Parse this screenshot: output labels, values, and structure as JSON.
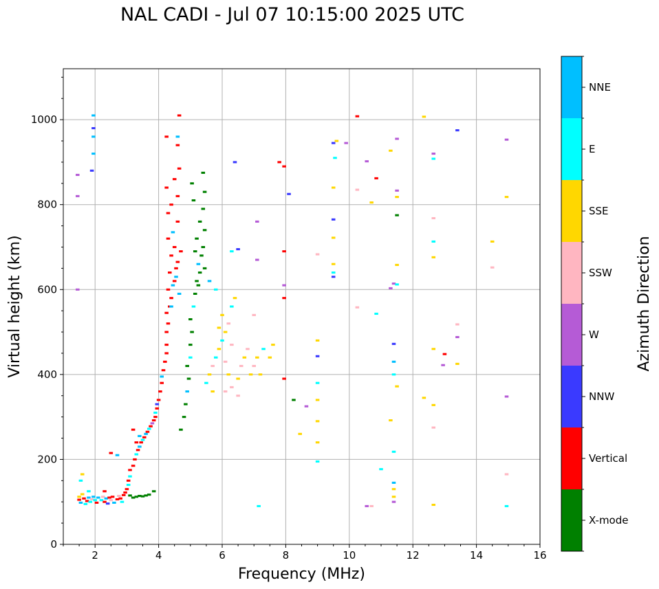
{
  "chart_data": {
    "type": "scatter",
    "title": "NAL CADI - Jul 07 10:15:00 2025 UTC",
    "xlabel": "Frequency (MHz)",
    "ylabel": "Virtual height (km)",
    "xlim": [
      1,
      16
    ],
    "ylim": [
      0,
      1120
    ],
    "xticks": [
      "2",
      "4",
      "6",
      "8",
      "10",
      "12",
      "14",
      "16"
    ],
    "yticks": [
      "0",
      "200",
      "400",
      "600",
      "800",
      "1000"
    ],
    "grid": true,
    "colorbar": {
      "label": "Azimuth Direction",
      "categories": [
        "X-mode",
        "Vertical",
        "NNW",
        "W",
        "SSW",
        "SSE",
        "E",
        "NNE"
      ],
      "colors": [
        "#008000",
        "#ff0000",
        "#3a3aff",
        "#b55bd6",
        "#ffb6c1",
        "#ffd700",
        "#00ffff",
        "#00bfff"
      ]
    },
    "points_format": [
      "frequency_MHz",
      "height_km",
      "category_index"
    ],
    "points": [
      [
        1.5,
        105,
        1
      ],
      [
        1.5,
        112,
        5
      ],
      [
        1.55,
        98,
        7
      ],
      [
        1.6,
        118,
        5
      ],
      [
        1.65,
        108,
        1
      ],
      [
        1.7,
        95,
        6
      ],
      [
        1.75,
        102,
        1
      ],
      [
        1.8,
        110,
        7
      ],
      [
        1.85,
        100,
        6
      ],
      [
        1.9,
        106,
        4
      ],
      [
        1.95,
        112,
        7
      ],
      [
        2.0,
        104,
        6
      ],
      [
        2.05,
        98,
        1
      ],
      [
        2.1,
        110,
        7
      ],
      [
        2.2,
        104,
        6
      ],
      [
        2.25,
        112,
        4
      ],
      [
        2.3,
        100,
        1
      ],
      [
        2.35,
        108,
        7
      ],
      [
        2.4,
        96,
        2
      ],
      [
        2.45,
        110,
        1
      ],
      [
        2.5,
        104,
        4
      ],
      [
        2.55,
        112,
        1
      ],
      [
        2.6,
        98,
        7
      ],
      [
        2.7,
        106,
        1
      ],
      [
        2.75,
        114,
        4
      ],
      [
        2.8,
        108,
        1
      ],
      [
        2.85,
        100,
        6
      ],
      [
        2.9,
        116,
        1
      ],
      [
        2.95,
        122,
        1
      ],
      [
        3.0,
        130,
        1
      ],
      [
        3.05,
        140,
        6
      ],
      [
        3.05,
        150,
        1
      ],
      [
        3.1,
        160,
        6
      ],
      [
        3.1,
        175,
        1
      ],
      [
        1.6,
        165,
        5
      ],
      [
        1.55,
        150,
        6
      ],
      [
        1.8,
        125,
        6
      ],
      [
        2.3,
        125,
        1
      ],
      [
        3.2,
        110,
        0
      ],
      [
        3.3,
        112,
        0
      ],
      [
        3.4,
        114,
        0
      ],
      [
        3.5,
        113,
        0
      ],
      [
        3.6,
        115,
        0
      ],
      [
        3.7,
        117,
        0
      ],
      [
        3.85,
        125,
        0
      ],
      [
        3.1,
        115,
        0
      ],
      [
        3.2,
        185,
        1
      ],
      [
        3.25,
        200,
        1
      ],
      [
        3.3,
        212,
        6
      ],
      [
        3.35,
        222,
        1
      ],
      [
        3.4,
        230,
        7
      ],
      [
        3.45,
        240,
        1
      ],
      [
        3.5,
        246,
        6
      ],
      [
        3.55,
        252,
        1
      ],
      [
        3.6,
        260,
        7
      ],
      [
        3.65,
        265,
        1
      ],
      [
        3.7,
        272,
        6
      ],
      [
        3.75,
        278,
        1
      ],
      [
        3.8,
        285,
        3
      ],
      [
        3.85,
        292,
        1
      ],
      [
        3.9,
        300,
        1
      ],
      [
        3.9,
        310,
        6
      ],
      [
        3.95,
        320,
        1
      ],
      [
        3.95,
        330,
        2
      ],
      [
        4.0,
        340,
        1
      ],
      [
        4.05,
        360,
        1
      ],
      [
        4.1,
        380,
        1
      ],
      [
        4.1,
        395,
        7
      ],
      [
        4.15,
        410,
        1
      ],
      [
        4.2,
        430,
        1
      ],
      [
        4.25,
        450,
        1
      ],
      [
        4.25,
        470,
        1
      ],
      [
        3.3,
        240,
        1
      ],
      [
        3.4,
        255,
        7
      ],
      [
        3.2,
        270,
        1
      ],
      [
        2.5,
        215,
        1
      ],
      [
        2.7,
        210,
        7
      ],
      [
        4.25,
        500,
        1
      ],
      [
        4.3,
        520,
        1
      ],
      [
        4.25,
        545,
        1
      ],
      [
        4.35,
        560,
        1
      ],
      [
        4.4,
        580,
        1
      ],
      [
        4.3,
        600,
        1
      ],
      [
        4.45,
        610,
        7
      ],
      [
        4.5,
        620,
        1
      ],
      [
        4.35,
        640,
        1
      ],
      [
        4.55,
        650,
        1
      ],
      [
        4.6,
        665,
        1
      ],
      [
        4.4,
        680,
        1
      ],
      [
        4.5,
        700,
        1
      ],
      [
        4.7,
        690,
        1
      ],
      [
        4.3,
        720,
        1
      ],
      [
        4.45,
        735,
        7
      ],
      [
        4.6,
        760,
        1
      ],
      [
        4.3,
        780,
        1
      ],
      [
        4.4,
        800,
        1
      ],
      [
        4.6,
        820,
        1
      ],
      [
        4.25,
        840,
        1
      ],
      [
        4.5,
        860,
        1
      ],
      [
        4.65,
        885,
        1
      ],
      [
        4.6,
        940,
        1
      ],
      [
        4.25,
        960,
        1
      ],
      [
        4.65,
        1010,
        1
      ],
      [
        4.6,
        960,
        7
      ],
      [
        4.55,
        630,
        7
      ],
      [
        4.65,
        590,
        7
      ],
      [
        4.4,
        560,
        7
      ],
      [
        4.7,
        270,
        0
      ],
      [
        4.8,
        300,
        0
      ],
      [
        4.85,
        330,
        0
      ],
      [
        4.9,
        360,
        7
      ],
      [
        4.95,
        390,
        0
      ],
      [
        4.9,
        420,
        0
      ],
      [
        5.0,
        440,
        6
      ],
      [
        5.0,
        470,
        0
      ],
      [
        5.05,
        500,
        0
      ],
      [
        5.0,
        530,
        0
      ],
      [
        5.1,
        560,
        6
      ],
      [
        5.15,
        590,
        0
      ],
      [
        5.2,
        620,
        0
      ],
      [
        5.3,
        640,
        0
      ],
      [
        5.25,
        660,
        7
      ],
      [
        5.35,
        680,
        0
      ],
      [
        5.4,
        700,
        0
      ],
      [
        5.2,
        720,
        0
      ],
      [
        5.45,
        740,
        0
      ],
      [
        5.3,
        760,
        0
      ],
      [
        5.4,
        790,
        0
      ],
      [
        5.1,
        810,
        0
      ],
      [
        5.45,
        830,
        0
      ],
      [
        5.05,
        850,
        0
      ],
      [
        5.4,
        875,
        0
      ],
      [
        5.25,
        610,
        0
      ],
      [
        5.45,
        650,
        0
      ],
      [
        5.15,
        690,
        0
      ],
      [
        5.5,
        380,
        6
      ],
      [
        5.6,
        400,
        5
      ],
      [
        5.7,
        420,
        4
      ],
      [
        5.8,
        440,
        6
      ],
      [
        5.9,
        460,
        5
      ],
      [
        6.0,
        480,
        6
      ],
      [
        6.1,
        500,
        5
      ],
      [
        6.2,
        520,
        4
      ],
      [
        6.3,
        560,
        6
      ],
      [
        6.4,
        580,
        5
      ],
      [
        6.0,
        540,
        5
      ],
      [
        5.8,
        600,
        6
      ],
      [
        5.6,
        620,
        7
      ],
      [
        6.1,
        430,
        4
      ],
      [
        6.2,
        400,
        5
      ],
      [
        6.3,
        370,
        4
      ],
      [
        6.5,
        390,
        5
      ],
      [
        6.6,
        420,
        4
      ],
      [
        6.7,
        440,
        5
      ],
      [
        6.8,
        460,
        4
      ],
      [
        6.9,
        400,
        5
      ],
      [
        7.0,
        420,
        4
      ],
      [
        7.1,
        440,
        5
      ],
      [
        7.2,
        400,
        5
      ],
      [
        7.3,
        460,
        6
      ],
      [
        7.5,
        440,
        5
      ],
      [
        7.6,
        470,
        5
      ],
      [
        7.0,
        540,
        4
      ],
      [
        6.5,
        350,
        4
      ],
      [
        5.7,
        360,
        5
      ],
      [
        6.1,
        360,
        4
      ],
      [
        6.3,
        690,
        6
      ],
      [
        6.5,
        695,
        2
      ],
      [
        6.3,
        470,
        4
      ],
      [
        5.9,
        510,
        5
      ],
      [
        6.4,
        900,
        2
      ],
      [
        1.45,
        820,
        3
      ],
      [
        1.45,
        600,
        3
      ],
      [
        1.45,
        870,
        3
      ],
      [
        1.95,
        1010,
        7
      ],
      [
        1.95,
        960,
        7
      ],
      [
        1.95,
        920,
        7
      ],
      [
        1.9,
        880,
        2
      ],
      [
        1.95,
        980,
        2
      ],
      [
        7.1,
        670,
        3
      ],
      [
        7.1,
        760,
        3
      ],
      [
        7.8,
        900,
        1
      ],
      [
        7.95,
        890,
        1
      ],
      [
        7.95,
        690,
        1
      ],
      [
        7.95,
        610,
        3
      ],
      [
        7.95,
        580,
        1
      ],
      [
        7.95,
        390,
        1
      ],
      [
        8.1,
        825,
        2
      ],
      [
        8.25,
        340,
        0
      ],
      [
        8.45,
        260,
        5
      ],
      [
        8.65,
        325,
        3
      ],
      [
        9.0,
        480,
        5
      ],
      [
        9.0,
        443,
        2
      ],
      [
        9.0,
        380,
        6
      ],
      [
        9.0,
        340,
        5
      ],
      [
        9.0,
        290,
        5
      ],
      [
        9.0,
        240,
        5
      ],
      [
        9.0,
        195,
        6
      ],
      [
        9.0,
        683,
        4
      ],
      [
        9.5,
        945,
        2
      ],
      [
        9.55,
        910,
        6
      ],
      [
        9.5,
        840,
        5
      ],
      [
        9.5,
        765,
        2
      ],
      [
        9.5,
        722,
        5
      ],
      [
        9.5,
        660,
        5
      ],
      [
        9.5,
        640,
        6
      ],
      [
        9.5,
        630,
        2
      ],
      [
        9.6,
        950,
        5
      ],
      [
        9.9,
        945,
        3
      ],
      [
        10.25,
        1008,
        1
      ],
      [
        10.25,
        558,
        4
      ],
      [
        10.25,
        835,
        4
      ],
      [
        10.55,
        902,
        3
      ],
      [
        10.7,
        805,
        5
      ],
      [
        10.85,
        862,
        1
      ],
      [
        10.85,
        543,
        6
      ],
      [
        11.0,
        177,
        6
      ],
      [
        10.55,
        90,
        3
      ],
      [
        10.7,
        90,
        4
      ],
      [
        11.3,
        927,
        5
      ],
      [
        11.3,
        603,
        3
      ],
      [
        11.3,
        292,
        5
      ],
      [
        11.4,
        614,
        3
      ],
      [
        11.4,
        472,
        2
      ],
      [
        11.4,
        430,
        7
      ],
      [
        11.4,
        400,
        6
      ],
      [
        11.4,
        218,
        6
      ],
      [
        11.4,
        145,
        7
      ],
      [
        11.4,
        130,
        5
      ],
      [
        11.4,
        112,
        5
      ],
      [
        11.4,
        100,
        3
      ],
      [
        11.5,
        955,
        3
      ],
      [
        11.5,
        833,
        3
      ],
      [
        11.5,
        818,
        5
      ],
      [
        11.5,
        775,
        0
      ],
      [
        11.5,
        658,
        5
      ],
      [
        11.5,
        612,
        6
      ],
      [
        11.5,
        372,
        5
      ],
      [
        12.35,
        1007,
        5
      ],
      [
        12.35,
        345,
        5
      ],
      [
        12.65,
        920,
        3
      ],
      [
        12.65,
        908,
        6
      ],
      [
        12.65,
        768,
        4
      ],
      [
        12.65,
        713,
        6
      ],
      [
        12.65,
        676,
        5
      ],
      [
        12.65,
        460,
        5
      ],
      [
        12.65,
        328,
        5
      ],
      [
        12.65,
        275,
        4
      ],
      [
        12.65,
        93,
        5
      ],
      [
        13.0,
        448,
        1
      ],
      [
        12.95,
        422,
        3
      ],
      [
        13.4,
        975,
        2
      ],
      [
        13.4,
        518,
        4
      ],
      [
        13.4,
        488,
        3
      ],
      [
        13.4,
        425,
        5
      ],
      [
        14.5,
        713,
        5
      ],
      [
        14.5,
        652,
        4
      ],
      [
        14.95,
        953,
        3
      ],
      [
        14.95,
        818,
        5
      ],
      [
        14.95,
        348,
        3
      ],
      [
        14.95,
        165,
        4
      ],
      [
        14.95,
        90,
        6
      ],
      [
        7.15,
        90,
        6
      ]
    ]
  }
}
